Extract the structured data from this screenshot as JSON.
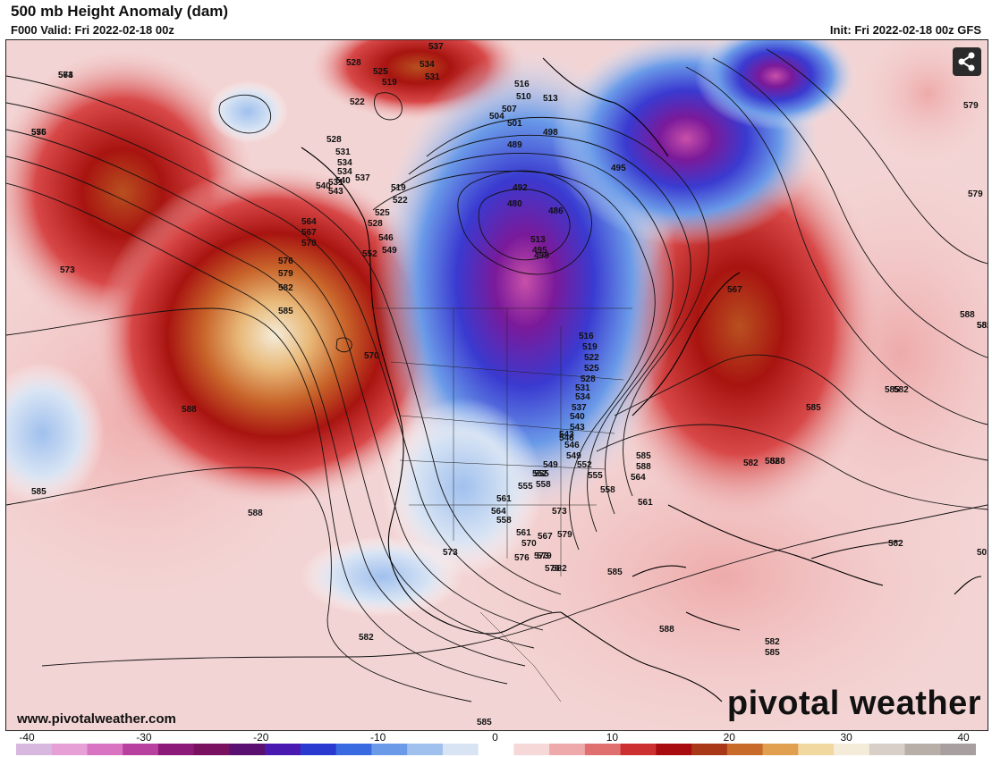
{
  "header": {
    "title": "500 mb Height Anomaly (dam)",
    "valid": "F000 Valid: Fri 2022-02-18 00z",
    "init": "Init: Fri 2022-02-18 00z GFS"
  },
  "footer": {
    "website": "www.pivotalweather.com",
    "logo": "pivotal weather"
  },
  "icons": {
    "share": "share-icon"
  },
  "colorbar": {
    "tick_labels": [
      "-40",
      "-30",
      "-20",
      "-10",
      "0",
      "10",
      "20",
      "30",
      "40"
    ],
    "colors": [
      "#d9b8e0",
      "#e6a0d6",
      "#d874c2",
      "#b8409e",
      "#8c1a78",
      "#7a1060",
      "#5a1070",
      "#4a1ab0",
      "#2a3ad0",
      "#3a6ae0",
      "#6a9ae8",
      "#a0c0ee",
      "#d8e4f4",
      "#ffffff",
      "#f6d8d8",
      "#eeaaaa",
      "#e07070",
      "#cc3030",
      "#a80c10",
      "#a83818",
      "#c86a2a",
      "#e0a050",
      "#f0d8a0",
      "#f4ecd8",
      "#d8d0c8",
      "#b8b0a8",
      "#a8a0a0"
    ]
  },
  "height_labels": [
    "564",
    "576",
    "528",
    "525",
    "522",
    "519",
    "534",
    "537",
    "531",
    "516",
    "510",
    "513",
    "507",
    "504",
    "501",
    "498",
    "489",
    "495",
    "480",
    "486",
    "492",
    "579",
    "528",
    "531",
    "534",
    "540",
    "543",
    "546",
    "549",
    "552",
    "555",
    "558",
    "561",
    "564",
    "567",
    "570",
    "573",
    "576",
    "579",
    "582",
    "585",
    "588",
    "582",
    "585",
    "588",
    "582",
    "585",
    "570",
    "573",
    "576",
    "579",
    "582",
    "585",
    "582",
    "588",
    "588",
    "585",
    "576",
    "579",
    "582",
    "585",
    "519",
    "522",
    "525",
    "528",
    "531",
    "534",
    "537",
    "540",
    "543",
    "546",
    "549",
    "552",
    "555",
    "558",
    "561",
    "564",
    "567",
    "573",
    "501",
    "498",
    "495",
    "513",
    "516",
    "519",
    "522",
    "525",
    "528",
    "531",
    "534",
    "537",
    "540",
    "543",
    "546",
    "549",
    "552",
    "555",
    "558",
    "561",
    "570",
    "573",
    "576",
    "579",
    "582",
    "585",
    "582",
    "585",
    "588",
    "582",
    "585",
    "588",
    "564",
    "567",
    "573",
    "555"
  ]
}
